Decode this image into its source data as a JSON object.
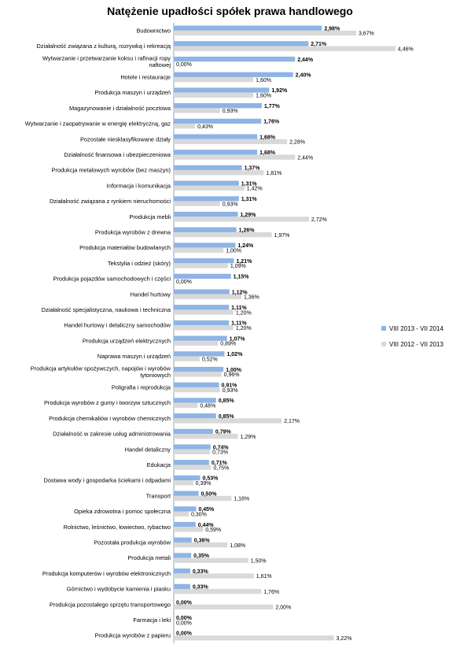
{
  "chart_data": {
    "type": "bar",
    "orientation": "horizontal",
    "title": "Natężenie upadłości spółek prawa handlowego",
    "xlim": [
      0,
      5
    ],
    "grid": false,
    "legend_position": "right",
    "categories": [
      "Budownictwo",
      "Działalność związana z kulturą, rozrywką i rekreacją",
      "Wytwarzanie i przetwarzanie koksu i rafinacji ropy naftowej",
      "Hotele i restauracje",
      "Produkcja maszyn i urządzeń",
      "Magazynowanie i działalność pocztowa",
      "Wytwarzanie i zaopatrywanie w energię elektryczną, gaz",
      "Pozostałe niesklasyfikowane działy",
      "Działalność finansowa i ubezpieczeniowa",
      "Produkcja metalowych wyrobów (bez maszyn)",
      "Informacja i komunikacja",
      "Działalność związana z rynkiem nieruchomości",
      "Produkcja mebli",
      "Produkcja wyrobów z drewna",
      "Produkcja materiałów budowlanych",
      "Tekstylia i odzież (skóry)",
      "Produkcja pojazdów samochodowych i części",
      "Handel hurtowy",
      "Działalność specjalistyczna, naukowa i techniczna",
      "Handel hurtowy i detaliczny samochodów",
      "Produkcja urządzeń elektrycznych",
      "Naprawa maszyn i urządzeń",
      "Produkcja artykułów spożywczych, napojów i wyrobów tytoniowych",
      "Poligrafia i reprodukcja",
      "Produkcja wyrobów z gumy i tworzyw sztucznych",
      "Produkcja chemikaliów i wyrobów chemicznych",
      "Działalność w zakresie usług administrowania",
      "Handel detaliczny",
      "Edukacja",
      "Dostawa wody i gospodarka ściekami i odpadami",
      "Transport",
      "Opieka zdrowotna i pomoc społeczna",
      "Rolnictwo, leśnictwo, łowiectwo, rybactwo",
      "Pozostała produkcja wyrobów",
      "Produkcja metali",
      "Produkcja komputerów i wyrobów elektronicznych",
      "Górnictwo i wydobycie kamienia i piasku",
      "Produkcja pozostałego sprzętu transportowego",
      "Farmacja i leki",
      "Produkcja wyrobów z papieru"
    ],
    "series": [
      {
        "name": "VIII 2013 - VII 2014",
        "color": "#8eb4e3",
        "values": [
          2.98,
          2.71,
          2.44,
          2.4,
          1.92,
          1.77,
          1.76,
          1.68,
          1.68,
          1.37,
          1.31,
          1.31,
          1.29,
          1.26,
          1.24,
          1.21,
          1.15,
          1.12,
          1.11,
          1.11,
          1.07,
          1.02,
          1.0,
          0.91,
          0.85,
          0.85,
          0.79,
          0.74,
          0.71,
          0.53,
          0.5,
          0.45,
          0.44,
          0.36,
          0.35,
          0.33,
          0.33,
          0.0,
          0.0,
          0.0
        ],
        "labels": [
          "2,98%",
          "2,71%",
          "2,44%",
          "2,40%",
          "1,92%",
          "1,77%",
          "1,76%",
          "1,68%",
          "1,68%",
          "1,37%",
          "1,31%",
          "1,31%",
          "1,29%",
          "1,26%",
          "1,24%",
          "1,21%",
          "1,15%",
          "1,12%",
          "1,11%",
          "1,11%",
          "1,07%",
          "1,02%",
          "1,00%",
          "0,91%",
          "0,85%",
          "0,85%",
          "0,79%",
          "0,74%",
          "0,71%",
          "0,53%",
          "0,50%",
          "0,45%",
          "0,44%",
          "0,36%",
          "0,35%",
          "0,33%",
          "0,33%",
          "0,00%",
          "0,00%",
          "0,00%"
        ]
      },
      {
        "name": "VIII 2012 - VII 2013",
        "color": "#d9d9d9",
        "values": [
          3.67,
          4.46,
          0.0,
          1.6,
          1.6,
          0.93,
          0.43,
          2.28,
          2.44,
          1.81,
          1.42,
          0.93,
          2.72,
          1.97,
          1.0,
          1.09,
          0.0,
          1.36,
          1.2,
          1.2,
          0.89,
          0.52,
          0.96,
          0.93,
          0.48,
          2.17,
          1.29,
          0.73,
          0.75,
          0.39,
          1.16,
          0.3,
          0.59,
          1.08,
          1.5,
          1.61,
          1.76,
          2.0,
          0.0,
          3.22
        ],
        "labels": [
          "3,67%",
          "4,46%",
          "0,00%",
          "1,60%",
          "1,60%",
          "0,93%",
          "0,43%",
          "2,28%",
          "2,44%",
          "1,81%",
          "1,42%",
          "0,93%",
          "2,72%",
          "1,97%",
          "1,00%",
          "1,09%",
          "0,00%",
          "1,36%",
          "1,20%",
          "1,20%",
          "0,89%",
          "0,52%",
          "0,96%",
          "0,93%",
          "0,48%",
          "2,17%",
          "1,29%",
          "0,73%",
          "0,75%",
          "0,39%",
          "1,16%",
          "0,30%",
          "0,59%",
          "1,08%",
          "1,50%",
          "1,61%",
          "1,76%",
          "2,00%",
          "0,00%",
          "3,22%"
        ]
      }
    ]
  }
}
